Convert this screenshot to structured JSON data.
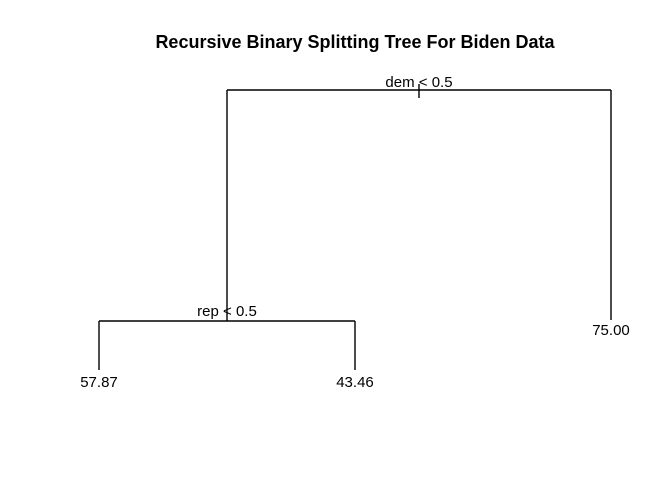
{
  "title": "Recursive Binary Splitting Tree For Biden Data",
  "tree": {
    "root_split": "dem < 0.5",
    "left_split": "rep < 0.5",
    "leaves": {
      "left_left": "57.87",
      "left_right": "43.46",
      "right": "75.00"
    }
  }
}
